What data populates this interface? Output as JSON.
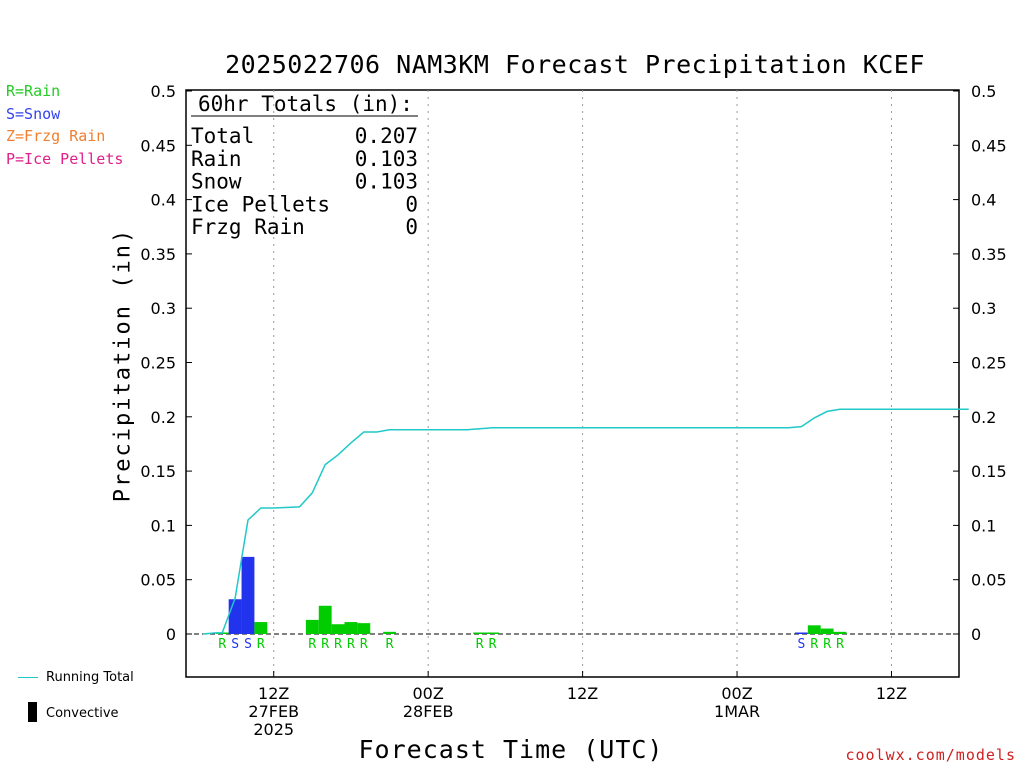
{
  "title": "2025022706 NAM3KM Forecast Precipitation KCEF",
  "legend_types": [
    {
      "label": "R=Rain",
      "color": "#22cc22"
    },
    {
      "label": "S=Snow",
      "color": "#3344ee"
    },
    {
      "label": "Z=Frzg Rain",
      "color": "#f08030"
    },
    {
      "label": "P=Ice Pellets",
      "color": "#e0208a"
    }
  ],
  "legend_bottom": {
    "running_total": "Running Total",
    "convective": "Convective"
  },
  "credit": "coolwx.com/models",
  "totals": {
    "header": "60hr Totals (in):",
    "rows": [
      {
        "label": "Total",
        "value": "0.207"
      },
      {
        "label": "Rain",
        "value": "0.103"
      },
      {
        "label": "Snow",
        "value": "0.103"
      },
      {
        "label": "Ice Pellets",
        "value": "0"
      },
      {
        "label": "Frzg Rain",
        "value": "0"
      }
    ]
  },
  "colors": {
    "rain": "#00cc00",
    "snow": "#2233ee",
    "running_total": "#20c8c8",
    "grid": "#999999"
  },
  "chart_data": {
    "type": "bar",
    "title": "2025022706 NAM3KM Forecast Precipitation KCEF",
    "xlabel": "Forecast Time (UTC)",
    "ylabel": "Precipitation (in)",
    "ylim": [
      0,
      0.5
    ],
    "xlim": [
      0,
      60
    ],
    "yticks": [
      "0",
      "0.05",
      "0.1",
      "0.15",
      "0.2",
      "0.25",
      "0.3",
      "0.35",
      "0.4",
      "0.45",
      "0.5"
    ],
    "xticks": [
      {
        "hour": 6,
        "lines": [
          "12Z",
          "27FEB",
          "2025"
        ]
      },
      {
        "hour": 18,
        "lines": [
          "00Z",
          "28FEB"
        ]
      },
      {
        "hour": 30,
        "lines": [
          "12Z"
        ]
      },
      {
        "hour": 42,
        "lines": [
          "00Z",
          "1MAR"
        ]
      },
      {
        "hour": 54,
        "lines": [
          "12Z"
        ]
      }
    ],
    "grid": true,
    "bars": [
      {
        "hour": 2,
        "value": 0.001,
        "type": "R"
      },
      {
        "hour": 3,
        "value": 0.032,
        "type": "S"
      },
      {
        "hour": 4,
        "value": 0.071,
        "type": "S"
      },
      {
        "hour": 5,
        "value": 0.011,
        "type": "R"
      },
      {
        "hour": 9,
        "value": 0.013,
        "type": "R"
      },
      {
        "hour": 10,
        "value": 0.026,
        "type": "R"
      },
      {
        "hour": 11,
        "value": 0.009,
        "type": "R"
      },
      {
        "hour": 12,
        "value": 0.011,
        "type": "R"
      },
      {
        "hour": 13,
        "value": 0.01,
        "type": "R"
      },
      {
        "hour": 15,
        "value": 0.002,
        "type": "R"
      },
      {
        "hour": 22,
        "value": 0.0005,
        "type": "R"
      },
      {
        "hour": 23,
        "value": 0.0005,
        "type": "R"
      },
      {
        "hour": 47,
        "value": 0.0005,
        "type": "S"
      },
      {
        "hour": 48,
        "value": 0.008,
        "type": "R"
      },
      {
        "hour": 49,
        "value": 0.005,
        "type": "R"
      },
      {
        "hour": 50,
        "value": 0.002,
        "type": "R"
      }
    ],
    "running_total": [
      [
        0.5,
        0
      ],
      [
        1.5,
        0.001
      ],
      [
        2,
        0.001
      ],
      [
        3,
        0.033
      ],
      [
        4,
        0.105
      ],
      [
        5,
        0.116
      ],
      [
        6,
        0.116
      ],
      [
        8,
        0.117
      ],
      [
        9,
        0.13
      ],
      [
        10,
        0.156
      ],
      [
        11,
        0.165
      ],
      [
        12,
        0.176
      ],
      [
        13,
        0.186
      ],
      [
        14,
        0.186
      ],
      [
        15,
        0.188
      ],
      [
        17,
        0.188
      ],
      [
        21,
        0.188
      ],
      [
        23,
        0.19
      ],
      [
        46,
        0.19
      ],
      [
        47,
        0.191
      ],
      [
        48,
        0.199
      ],
      [
        49,
        0.205
      ],
      [
        50,
        0.207
      ],
      [
        60,
        0.207
      ]
    ]
  }
}
